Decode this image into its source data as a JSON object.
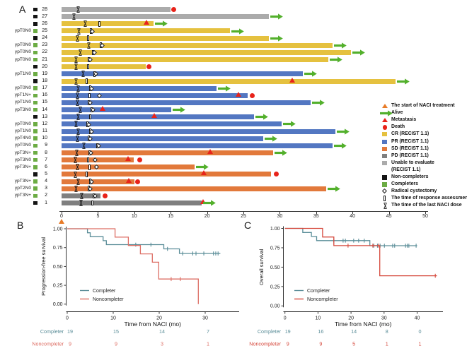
{
  "colors": {
    "cr": "#E5C13F",
    "pr": "#5377C2",
    "sd": "#E2793B",
    "pd": "#7F7F7F",
    "unable": "#ABABAB",
    "completer_square": "#6CAC44",
    "noncompleter_square": "#141414",
    "alive_arrow": "#53B02C",
    "event_red": "#E8231A",
    "start_triangle": "#E87B28",
    "km_completer": "#5A8D98",
    "km_noncompleter_b": "#DD6E64",
    "km_noncompleter_c": "#D6493D",
    "axis": "#333333"
  },
  "chart_data": [
    {
      "id": "A",
      "type": "swimmer",
      "title": "A",
      "xlim": [
        0,
        50
      ],
      "x_ticks": [
        0,
        5,
        10,
        15,
        20,
        25,
        30,
        35,
        40,
        45,
        50
      ],
      "start_of_treatment_marker_x": 0,
      "legend": [
        {
          "symbol": "start-triangle",
          "label": "The start of NACI treatment"
        },
        {
          "symbol": "alive-arrow",
          "label": "Alive"
        },
        {
          "symbol": "metastasis-triangle",
          "label": "Metastasis"
        },
        {
          "symbol": "death-circle",
          "label": "Death"
        },
        {
          "symbol": "cr-square",
          "label": "CR (RECIST 1.1)"
        },
        {
          "symbol": "pr-square",
          "label": "PR (RECIST 1.1)"
        },
        {
          "symbol": "sd-square",
          "label": "SD (RECIST 1.1)"
        },
        {
          "symbol": "pd-square",
          "label": "PD (RECIST 1.1)"
        },
        {
          "symbol": "unable-square",
          "label": "Unable to evaluate"
        },
        {
          "symbol": null,
          "label": "(RECIST 1.1)"
        },
        {
          "symbol": "noncompleter-square",
          "label": "Non-completers"
        },
        {
          "symbol": "completer-square",
          "label": "Completers"
        },
        {
          "symbol": "cystectomy-diamond",
          "label": "Radical cystectomy"
        },
        {
          "symbol": "assessment-rect",
          "label": "The time of response assessment"
        },
        {
          "symbol": "lastdose-hourglass",
          "label": "The time of the last NACI dose"
        }
      ],
      "patients": [
        {
          "row": 28,
          "stage": "",
          "completer": false,
          "response": "unable",
          "bar_end": 15.0,
          "last_dose": 2.3,
          "assessment": null,
          "cystectomy": null,
          "metastasis": null,
          "death": 15.4,
          "alive": false
        },
        {
          "row": 27,
          "stage": "",
          "completer": false,
          "response": "unable",
          "bar_end": 28.5,
          "last_dose": 1.7,
          "assessment": null,
          "cystectomy": null,
          "metastasis": null,
          "death": null,
          "alive": true
        },
        {
          "row": 26,
          "stage": "",
          "completer": false,
          "response": "cr",
          "bar_end": 12.6,
          "last_dose": 3.3,
          "assessment": 5.2,
          "cystectomy": null,
          "metastasis": 11.7,
          "death": null,
          "alive": true
        },
        {
          "row": 25,
          "stage": "ypT0N0",
          "completer": true,
          "response": "cr",
          "bar_end": 23.1,
          "last_dose": 2.4,
          "assessment": 4.0,
          "cystectomy": 4.2,
          "metastasis": null,
          "death": null,
          "alive": true
        },
        {
          "row": 24,
          "stage": "",
          "completer": false,
          "response": "cr",
          "bar_end": 28.5,
          "last_dose": 2.2,
          "assessment": 3.6,
          "cystectomy": null,
          "metastasis": null,
          "death": null,
          "alive": true
        },
        {
          "row": 23,
          "stage": "ypT0N0",
          "completer": true,
          "response": "cr",
          "bar_end": 37.3,
          "last_dose": 3.7,
          "assessment": 5.4,
          "cystectomy": 5.6,
          "metastasis": null,
          "death": null,
          "alive": true
        },
        {
          "row": 22,
          "stage": "ypT0N0",
          "completer": true,
          "response": "cr",
          "bar_end": 39.8,
          "last_dose": 2.6,
          "assessment": 4.3,
          "cystectomy": 4.5,
          "metastasis": null,
          "death": null,
          "alive": true
        },
        {
          "row": 21,
          "stage": "ypT0N0",
          "completer": true,
          "response": "cr",
          "bar_end": 36.7,
          "last_dose": 2.0,
          "assessment": 3.7,
          "cystectomy": 3.9,
          "metastasis": null,
          "death": null,
          "alive": true
        },
        {
          "row": 20,
          "stage": "",
          "completer": false,
          "response": "cr",
          "bar_end": 11.6,
          "last_dose": 2.0,
          "assessment": 3.6,
          "cystectomy": null,
          "metastasis": null,
          "death": 12.0,
          "alive": false
        },
        {
          "row": 19,
          "stage": "ypT1N0",
          "completer": true,
          "response": "pr",
          "bar_end": 33.2,
          "last_dose": 3.0,
          "assessment": 4.5,
          "cystectomy": 4.7,
          "metastasis": null,
          "death": null,
          "alive": true
        },
        {
          "row": 18,
          "stage": "",
          "completer": false,
          "response": "cr",
          "bar_end": 45.9,
          "last_dose": 2.0,
          "assessment": 3.4,
          "cystectomy": null,
          "metastasis": 31.8,
          "death": null,
          "alive": true
        },
        {
          "row": 17,
          "stage": "ypT0N0",
          "completer": true,
          "response": "pr",
          "bar_end": 21.3,
          "last_dose": 2.3,
          "assessment": 3.9,
          "cystectomy": 4.1,
          "metastasis": null,
          "death": null,
          "alive": true
        },
        {
          "row": 16,
          "stage": "ypT1N+",
          "completer": true,
          "response": "pr",
          "bar_end": 25.6,
          "last_dose": 2.2,
          "assessment": 3.8,
          "cystectomy": 5.2,
          "metastasis": 24.4,
          "death": 26.2,
          "alive": false
        },
        {
          "row": 15,
          "stage": "ypT1N0",
          "completer": true,
          "response": "pr",
          "bar_end": 34.2,
          "last_dose": 2.2,
          "assessment": 3.7,
          "cystectomy": 3.9,
          "metastasis": null,
          "death": null,
          "alive": true
        },
        {
          "row": 14,
          "stage": "ypT3N0",
          "completer": true,
          "response": "pr",
          "bar_end": 15.1,
          "last_dose": 2.6,
          "assessment": 4.1,
          "cystectomy": 4.3,
          "metastasis": 5.7,
          "death": null,
          "alive": true
        },
        {
          "row": 13,
          "stage": "",
          "completer": false,
          "response": "pr",
          "bar_end": 26.5,
          "last_dose": 2.3,
          "assessment": 3.9,
          "cystectomy": null,
          "metastasis": 12.8,
          "death": null,
          "alive": true
        },
        {
          "row": 12,
          "stage": "ypT0N0",
          "completer": true,
          "response": "pr",
          "bar_end": 30.2,
          "last_dose": 2.0,
          "assessment": 3.5,
          "cystectomy": 3.7,
          "metastasis": null,
          "death": null,
          "alive": true
        },
        {
          "row": 11,
          "stage": "ypT1N0",
          "completer": true,
          "response": "pr",
          "bar_end": 37.6,
          "last_dose": 2.3,
          "assessment": 3.9,
          "cystectomy": 4.1,
          "metastasis": null,
          "death": null,
          "alive": true
        },
        {
          "row": 10,
          "stage": "ypT4N0",
          "completer": true,
          "response": "pr",
          "bar_end": 27.7,
          "last_dose": 2.2,
          "assessment": 3.7,
          "cystectomy": 3.9,
          "metastasis": null,
          "death": null,
          "alive": true
        },
        {
          "row": 9,
          "stage": "ypT0N0",
          "completer": true,
          "response": "pr",
          "bar_end": 37.3,
          "last_dose": 3.1,
          "assessment": 4.9,
          "cystectomy": 5.1,
          "metastasis": null,
          "death": null,
          "alive": true
        },
        {
          "row": 8,
          "stage": "ypT3N+",
          "completer": true,
          "response": "sd",
          "bar_end": 29.1,
          "last_dose": 2.1,
          "assessment": 3.8,
          "cystectomy": 4.0,
          "metastasis": 20.5,
          "death": null,
          "alive": true
        },
        {
          "row": 7,
          "stage": "ypT3N0",
          "completer": true,
          "response": "sd",
          "bar_end": 9.9,
          "last_dose": 1.9,
          "assessment": 3.6,
          "cystectomy": 4.6,
          "metastasis": 9.2,
          "death": 10.7,
          "alive": false
        },
        {
          "row": 6,
          "stage": "ypT3N+",
          "completer": true,
          "response": "sd",
          "bar_end": 18.3,
          "last_dose": 2.2,
          "assessment": 3.8,
          "cystectomy": 4.8,
          "metastasis": null,
          "death": null,
          "alive": true
        },
        {
          "row": 5,
          "stage": "",
          "completer": false,
          "response": "sd",
          "bar_end": 28.8,
          "last_dose": 1.9,
          "assessment": 3.4,
          "cystectomy": null,
          "metastasis": 19.6,
          "death": 29.5,
          "alive": false
        },
        {
          "row": 4,
          "stage": "ypT3N+",
          "completer": true,
          "response": "sd",
          "bar_end": 10.0,
          "last_dose": 2.3,
          "assessment": 3.9,
          "cystectomy": 4.1,
          "metastasis": 9.3,
          "death": 10.5,
          "alive": false
        },
        {
          "row": 3,
          "stage": "ypT2N0",
          "completer": true,
          "response": "sd",
          "bar_end": 36.4,
          "last_dose": 2.0,
          "assessment": 3.7,
          "cystectomy": 3.9,
          "metastasis": null,
          "death": null,
          "alive": true
        },
        {
          "row": 2,
          "stage": "ypT3N+",
          "completer": true,
          "response": "pd",
          "bar_end": 5.3,
          "last_dose": 2.8,
          "assessment": 4.4,
          "cystectomy": 4.6,
          "metastasis": null,
          "death": 6.0,
          "alive": false
        },
        {
          "row": 1,
          "stage": "",
          "completer": false,
          "response": "pd",
          "bar_end": 19.3,
          "last_dose": 2.7,
          "assessment": 4.2,
          "cystectomy": null,
          "metastasis": 19.5,
          "death": null,
          "alive": true
        }
      ]
    },
    {
      "id": "B",
      "type": "line",
      "title": "B",
      "ylabel": "Progression-free survival",
      "xlabel": "Time from NACI (mo)",
      "y_ticks": [
        "1.00",
        "0.75",
        "0.50",
        "0.25",
        "0.00"
      ],
      "x_ticks": [
        "0",
        "10",
        "20",
        "30"
      ],
      "xlim": [
        0,
        37
      ],
      "ylim": [
        0,
        1
      ],
      "legend": [
        "Completer",
        "Noncompleter"
      ],
      "series": [
        {
          "name": "Completer",
          "color_key": "km_completer",
          "steps": [
            [
              0,
              1.0
            ],
            [
              4.4,
              0.947
            ],
            [
              5.0,
              0.895
            ],
            [
              7.8,
              0.842
            ],
            [
              8.5,
              0.789
            ],
            [
              21.0,
              0.733
            ],
            [
              24.4,
              0.672
            ]
          ],
          "censors": [
            [
              14.9,
              0.789
            ],
            [
              18.2,
              0.789
            ],
            [
              21.8,
              0.733
            ],
            [
              25.1,
              0.672
            ],
            [
              27.3,
              0.672
            ],
            [
              28.0,
              0.672
            ],
            [
              29.7,
              0.672
            ],
            [
              31.8,
              0.672
            ],
            [
              32.3,
              0.672
            ],
            [
              32.8,
              0.672
            ]
          ],
          "end": 33.3,
          "to_zero": false
        },
        {
          "name": "Noncompleter",
          "color_key": "km_noncompleter_b",
          "steps": [
            [
              0,
              1.0
            ],
            [
              10.4,
              0.889
            ],
            [
              13.3,
              0.778
            ],
            [
              15.9,
              0.667
            ],
            [
              18.5,
              0.556
            ],
            [
              19.9,
              0.333
            ]
          ],
          "censors": [
            [
              22.6,
              0.333
            ],
            [
              24.6,
              0.333
            ]
          ],
          "end": 28.5,
          "to_zero": true
        }
      ],
      "risk_table": {
        "times": [
          0,
          10,
          20,
          30
        ],
        "rows": [
          {
            "name": "Completer",
            "color_key": "km_completer",
            "values": [
              "19",
              "15",
              "14",
              "7"
            ]
          },
          {
            "name": "Noncompleter",
            "color_key": "km_noncompleter_b",
            "values": [
              "9",
              "9",
              "3",
              "1"
            ]
          }
        ]
      }
    },
    {
      "id": "C",
      "type": "line",
      "title": "C",
      "ylabel": "Overall survival",
      "xlabel": "Time from NACI (mo)",
      "y_ticks": [
        "1.00",
        "0.75",
        "0.50",
        "0.25",
        "0.00"
      ],
      "x_ticks": [
        "0",
        "10",
        "20",
        "30",
        "40"
      ],
      "xlim": [
        0,
        47
      ],
      "ylim": [
        0,
        1
      ],
      "legend": [
        "Completer",
        "Noncompleter"
      ],
      "series": [
        {
          "name": "Completer",
          "color_key": "km_completer",
          "steps": [
            [
              0,
              1.0
            ],
            [
              5.4,
              0.947
            ],
            [
              8.0,
              0.895
            ],
            [
              9.6,
              0.842
            ],
            [
              25.7,
              0.777
            ]
          ],
          "censors": [
            [
              14.8,
              0.842
            ],
            [
              17.6,
              0.842
            ],
            [
              18.3,
              0.842
            ],
            [
              20.8,
              0.842
            ],
            [
              22.3,
              0.842
            ],
            [
              24.0,
              0.842
            ],
            [
              26.9,
              0.777
            ],
            [
              28.0,
              0.777
            ],
            [
              28.8,
              0.777
            ],
            [
              30.1,
              0.777
            ],
            [
              32.6,
              0.777
            ],
            [
              33.2,
              0.777
            ],
            [
              36.5,
              0.777
            ],
            [
              37.0,
              0.777
            ],
            [
              37.5,
              0.777
            ],
            [
              39.7,
              0.777
            ]
          ],
          "end": 40.0,
          "to_zero": false
        },
        {
          "name": "Noncompleter",
          "color_key": "km_noncompleter_c",
          "steps": [
            [
              0,
              1.0
            ],
            [
              11.4,
              0.889
            ],
            [
              14.8,
              0.778
            ],
            [
              28.7,
              0.389
            ]
          ],
          "censors": [
            [
              19.1,
              0.778
            ],
            [
              26.6,
              0.778
            ],
            [
              28.3,
              0.778
            ],
            [
              45.5,
              0.389
            ]
          ],
          "end": 46.0,
          "to_zero": false
        }
      ],
      "risk_table": {
        "times": [
          0,
          10,
          20,
          30,
          40
        ],
        "rows": [
          {
            "name": "Completer",
            "color_key": "km_completer",
            "values": [
              "19",
              "16",
              "14",
              "8",
              "0"
            ]
          },
          {
            "name": "Noncompleter",
            "color_key": "km_noncompleter_c",
            "values": [
              "9",
              "9",
              "5",
              "1",
              "1"
            ]
          }
        ]
      }
    }
  ]
}
